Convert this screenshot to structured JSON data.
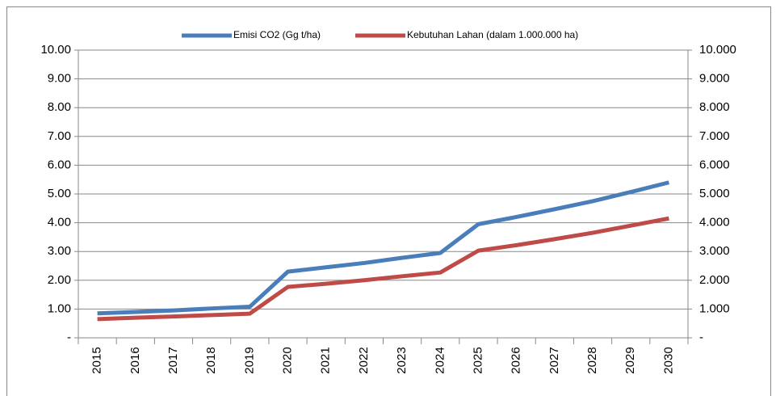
{
  "chart_data": {
    "type": "line",
    "categories": [
      "2015",
      "2016",
      "2017",
      "2018",
      "2019",
      "2020",
      "2021",
      "2022",
      "2023",
      "2024",
      "2025",
      "2026",
      "2027",
      "2028",
      "2029",
      "2030"
    ],
    "series": [
      {
        "name": "Emisi CO2 (Gg t/ha)",
        "color": "#4a7ebb",
        "values": [
          0.85,
          0.9,
          0.95,
          1.02,
          1.08,
          2.3,
          2.45,
          2.6,
          2.78,
          2.95,
          3.95,
          4.2,
          4.47,
          4.75,
          5.07,
          5.4
        ]
      },
      {
        "name": "Kebutuhan Lahan (dalam 1.000.000 ha)",
        "color": "#be4b48",
        "axis": "y2",
        "values": [
          0.65,
          0.7,
          0.74,
          0.79,
          0.84,
          1.77,
          1.88,
          2.0,
          2.14,
          2.27,
          3.03,
          3.22,
          3.43,
          3.65,
          3.9,
          4.15
        ]
      }
    ],
    "ylim": [
      0,
      10
    ],
    "yticks": [
      {
        "value": 0,
        "label": "-"
      },
      {
        "value": 1,
        "label": "1.00"
      },
      {
        "value": 2,
        "label": "2.00"
      },
      {
        "value": 3,
        "label": "3.00"
      },
      {
        "value": 4,
        "label": "4.00"
      },
      {
        "value": 5,
        "label": "5.00"
      },
      {
        "value": 6,
        "label": "6.00"
      },
      {
        "value": 7,
        "label": "7.00"
      },
      {
        "value": 8,
        "label": "8.00"
      },
      {
        "value": 9,
        "label": "9.00"
      },
      {
        "value": 10,
        "label": "10.00"
      }
    ],
    "y2lim": [
      0,
      10
    ],
    "y2ticks": [
      {
        "value": 0,
        "label": "-"
      },
      {
        "value": 1,
        "label": "1.000"
      },
      {
        "value": 2,
        "label": "2.000"
      },
      {
        "value": 3,
        "label": "3.000"
      },
      {
        "value": 4,
        "label": "4.000"
      },
      {
        "value": 5,
        "label": "5.000"
      },
      {
        "value": 6,
        "label": "6.000"
      },
      {
        "value": 7,
        "label": "7.000"
      },
      {
        "value": 8,
        "label": "8.000"
      },
      {
        "value": 9,
        "label": "9.000"
      },
      {
        "value": 10,
        "label": "10.000"
      }
    ],
    "grid": true,
    "legend": "top"
  }
}
